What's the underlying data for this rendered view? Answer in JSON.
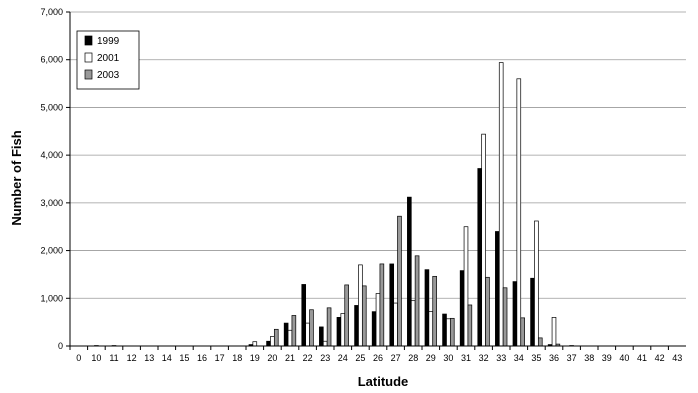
{
  "chart_data": {
    "type": "bar",
    "title": "",
    "xlabel": "Latitude",
    "ylabel": "Number of Fish",
    "ylim": [
      0,
      7000
    ],
    "yticks": [
      0,
      1000,
      2000,
      3000,
      4000,
      5000,
      6000,
      7000
    ],
    "ytick_labels": [
      "0",
      "1,000",
      "2,000",
      "3,000",
      "4,000",
      "5,000",
      "6,000",
      "7,000"
    ],
    "grid": "horizontal",
    "legend_position": "top-left",
    "categories": [
      "0",
      "10",
      "11",
      "12",
      "13",
      "14",
      "15",
      "16",
      "17",
      "18",
      "19",
      "20",
      "21",
      "22",
      "23",
      "24",
      "25",
      "26",
      "27",
      "28",
      "29",
      "30",
      "31",
      "32",
      "33",
      "34",
      "35",
      "36",
      "37",
      "38",
      "39",
      "40",
      "41",
      "42",
      "43"
    ],
    "series": [
      {
        "name": "1999",
        "color": "#000000",
        "values": [
          0,
          0,
          0,
          0,
          0,
          0,
          0,
          0,
          0,
          0,
          30,
          100,
          480,
          1290,
          400,
          600,
          850,
          720,
          1720,
          3120,
          1600,
          670,
          1580,
          3720,
          2400,
          1350,
          1420,
          30,
          0,
          0,
          0,
          0,
          0,
          0,
          0
        ]
      },
      {
        "name": "2001",
        "color": "#ffffff",
        "values": [
          0,
          10,
          10,
          0,
          0,
          0,
          0,
          0,
          0,
          0,
          90,
          200,
          330,
          480,
          100,
          680,
          1700,
          1100,
          900,
          950,
          720,
          570,
          2500,
          4440,
          5940,
          5600,
          2620,
          600,
          10,
          0,
          0,
          0,
          0,
          0,
          0
        ]
      },
      {
        "name": "2003",
        "color": "#999999",
        "values": [
          0,
          0,
          0,
          0,
          0,
          0,
          0,
          0,
          0,
          0,
          0,
          350,
          640,
          760,
          800,
          1280,
          1260,
          1720,
          2720,
          1890,
          1460,
          580,
          860,
          1440,
          1220,
          590,
          170,
          40,
          0,
          0,
          0,
          0,
          0,
          0,
          0
        ]
      }
    ]
  }
}
